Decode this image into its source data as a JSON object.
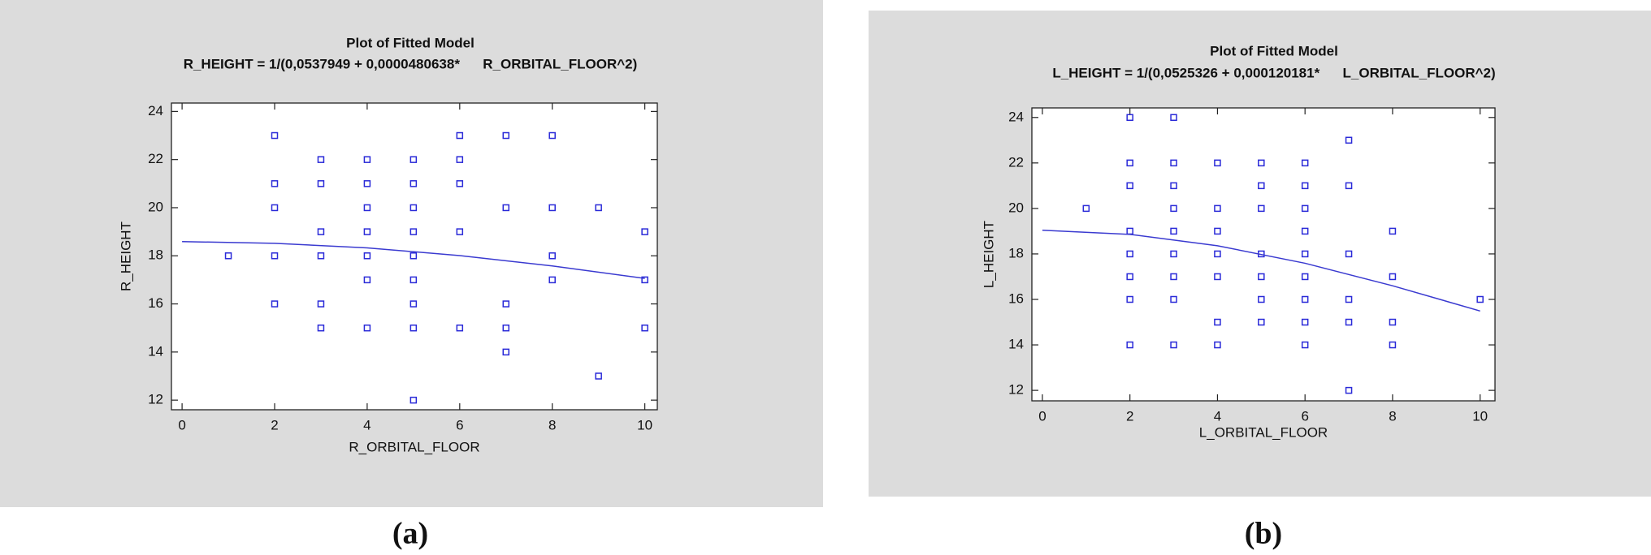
{
  "chart_data": [
    {
      "type": "scatter",
      "title": "Plot of Fitted Model",
      "subtitle": "R_HEIGHT = 1/(0,0537949 + 0,0000480638*      R_ORBITAL_FLOOR^2)",
      "x_label": "R_ORBITAL_FLOOR",
      "y_label": "R_HEIGHT",
      "caption": "(a)",
      "xlim": [
        -0.23,
        10.27
      ],
      "ylim": [
        11.6,
        24.35
      ],
      "xticks": [
        0,
        2,
        4,
        6,
        8,
        10
      ],
      "yticks": [
        12,
        14,
        16,
        18,
        20,
        22,
        24
      ],
      "series": [
        {
          "type": "scatter",
          "color": "#2a2ad8",
          "x": [
            1,
            2,
            2,
            2,
            2,
            2,
            3,
            3,
            3,
            3,
            3,
            3,
            4,
            4,
            4,
            4,
            4,
            4,
            4,
            5,
            5,
            5,
            5,
            5,
            5,
            5,
            5,
            5,
            6,
            6,
            6,
            6,
            6,
            7,
            7,
            7,
            7,
            7,
            8,
            8,
            8,
            8,
            9,
            9,
            10,
            10,
            10
          ],
          "values": [
            18,
            23,
            21,
            20,
            18,
            16,
            22,
            21,
            19,
            18,
            16,
            15,
            22,
            21,
            20,
            19,
            18,
            17,
            15,
            22,
            21,
            20,
            19,
            18,
            17,
            16,
            15,
            12,
            23,
            22,
            21,
            19,
            15,
            23,
            20,
            16,
            15,
            14,
            23,
            20,
            18,
            17,
            20,
            13,
            19,
            17,
            15
          ]
        },
        {
          "type": "line",
          "color": "#3a3ad0",
          "x": [
            0,
            2,
            4,
            6,
            8,
            10
          ],
          "values": [
            18.59,
            18.52,
            18.33,
            18.01,
            17.58,
            17.06
          ]
        }
      ]
    },
    {
      "type": "scatter",
      "title": "Plot of Fitted Model",
      "subtitle": "L_HEIGHT = 1/(0,0525326 + 0,000120181*      L_ORBITAL_FLOOR^2)",
      "x_label": "L_ORBITAL_FLOOR",
      "y_label": "L_HEIGHT",
      "caption": "(b)",
      "xlim": [
        -0.24,
        10.34
      ],
      "ylim": [
        11.54,
        24.42
      ],
      "xticks": [
        0,
        2,
        4,
        6,
        8,
        10
      ],
      "yticks": [
        12,
        14,
        16,
        18,
        20,
        22,
        24
      ],
      "series": [
        {
          "type": "scatter",
          "color": "#2a2ad8",
          "x": [
            1,
            2,
            2,
            2,
            2,
            2,
            2,
            2,
            2,
            3,
            3,
            3,
            3,
            3,
            3,
            3,
            3,
            3,
            4,
            4,
            4,
            4,
            4,
            4,
            4,
            5,
            5,
            5,
            5,
            5,
            5,
            5,
            6,
            6,
            6,
            6,
            6,
            6,
            6,
            6,
            6,
            7,
            7,
            7,
            7,
            7,
            7,
            8,
            8,
            8,
            8,
            10
          ],
          "values": [
            20,
            24,
            22,
            21,
            19,
            18,
            17,
            16,
            14,
            24,
            22,
            21,
            20,
            19,
            18,
            17,
            16,
            14,
            22,
            20,
            19,
            18,
            17,
            15,
            14,
            22,
            21,
            20,
            18,
            17,
            16,
            15,
            22,
            21,
            20,
            19,
            18,
            17,
            16,
            15,
            14,
            23,
            21,
            18,
            16,
            15,
            12,
            19,
            17,
            15,
            14,
            16
          ]
        },
        {
          "type": "line",
          "color": "#3a3ad0",
          "x": [
            0,
            2,
            4,
            6,
            8,
            10
          ],
          "values": [
            19.04,
            18.86,
            18.36,
            17.59,
            16.6,
            15.49
          ]
        }
      ]
    }
  ]
}
